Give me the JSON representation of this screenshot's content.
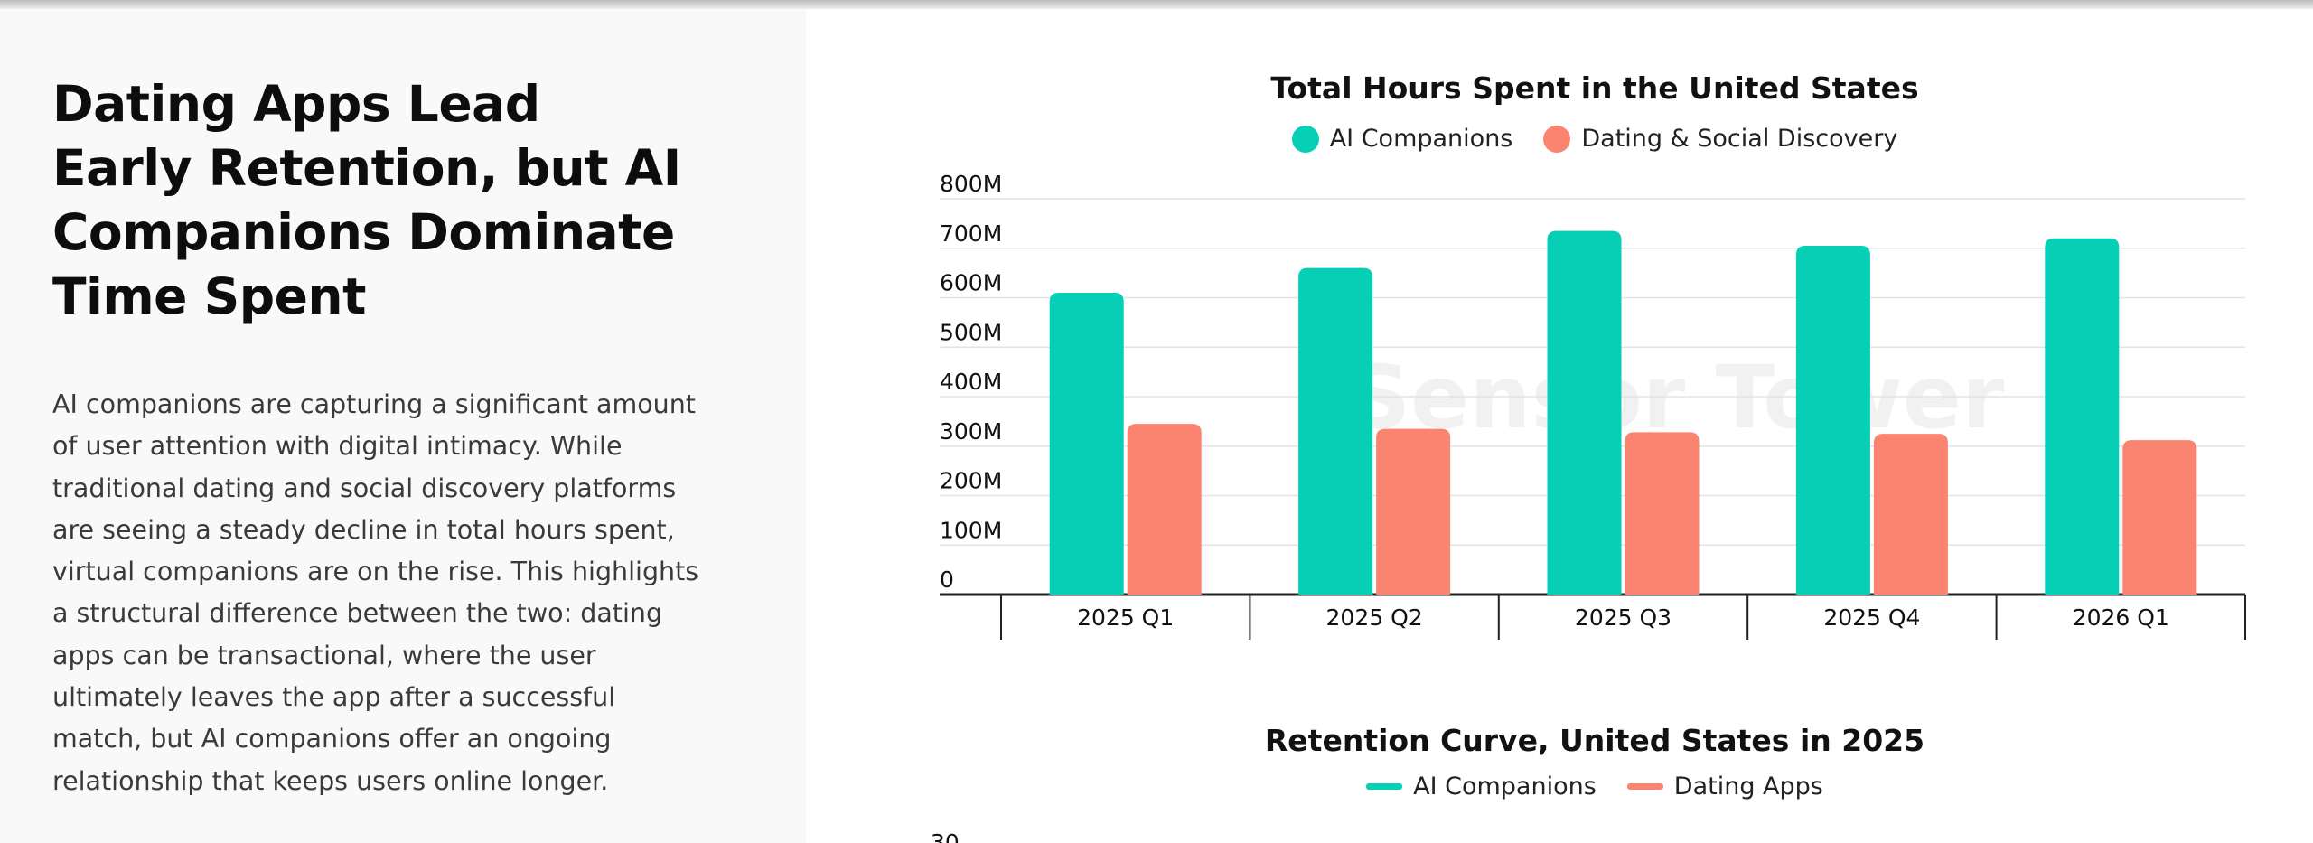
{
  "article": {
    "headline": "Dating Apps Lead Early Retention, but AI Companions Dominate Time Spent",
    "body": "AI companions are capturing a significant amount of user attention with digital intimacy. While traditional dating and social discovery platforms are seeing a steady decline in total hours spent, virtual companions are on the rise. This highlights a structural difference between the two: dating apps can be transactional, where the user ultimately leaves the app after a successful match, but AI companions offer an ongoing relationship that keeps users online longer."
  },
  "watermark": {
    "text": "Sensor Tower"
  },
  "colors": {
    "ai": "#06cfb6",
    "dating": "#fb8471",
    "grid": "#e3e3e3",
    "axis": "#222222"
  },
  "chart_data": [
    {
      "type": "bar",
      "title": "Total Hours Spent in the United States",
      "categories": [
        "2025 Q1",
        "2025 Q2",
        "2025 Q3",
        "2025 Q4",
        "2026 Q1"
      ],
      "series": [
        {
          "name": "AI Companions",
          "values": [
            610,
            660,
            735,
            705,
            720
          ],
          "color": "#06cfb6"
        },
        {
          "name": "Dating & Social Discovery",
          "values": [
            345,
            335,
            328,
            325,
            312
          ],
          "color": "#fb8471"
        }
      ],
      "yticks": [
        "0",
        "100M",
        "200M",
        "300M",
        "400M",
        "500M",
        "600M",
        "700M",
        "800M"
      ],
      "ylim": [
        0,
        800
      ],
      "xlabel": "",
      "ylabel": "",
      "grid": true,
      "legend": "top-center"
    },
    {
      "type": "line",
      "title": "Retention Curve, United States in 2025",
      "series": [
        {
          "name": "AI Companions",
          "color": "#06cfb6"
        },
        {
          "name": "Dating Apps",
          "color": "#fb8471"
        }
      ],
      "yticks_visible": [
        "30"
      ],
      "legend": "top-center"
    }
  ]
}
